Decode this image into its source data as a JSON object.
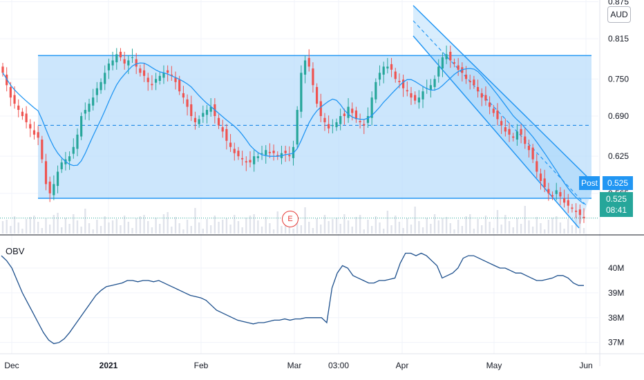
{
  "chart_data": [
    {
      "type": "candlestick",
      "currency": "AUD",
      "ylim": [
        0.5,
        0.88
      ],
      "y_ticks": [
        {
          "v": 0.875,
          "label": "0.875"
        },
        {
          "v": 0.815,
          "label": "0.815"
        },
        {
          "v": 0.75,
          "label": "0.750"
        },
        {
          "v": 0.69,
          "label": "0.690"
        },
        {
          "v": 0.625,
          "label": "0.625"
        },
        {
          "v": 0.565,
          "label": "0.565"
        }
      ],
      "x_ticks": [
        {
          "label": "Dec",
          "bold": false
        },
        {
          "label": "2021",
          "bold": true
        },
        {
          "label": "Feb",
          "bold": false
        },
        {
          "label": "Mar",
          "bold": false
        },
        {
          "label": "03:00",
          "bold": false
        },
        {
          "label": "Apr",
          "bold": false
        },
        {
          "label": "May",
          "bold": false
        },
        {
          "label": "Jun",
          "bold": false
        }
      ],
      "colors": {
        "up": "#26a69a",
        "down": "#ef5350",
        "ma": "#2196f3",
        "zone_fill": "#bbdefb",
        "zone_line": "#2196f3",
        "volume": "#e0e3eb"
      },
      "post_tag": "Post",
      "post_price": "0.525",
      "last_price": "0.525",
      "countdown": "08:41",
      "earnings_marker": "E",
      "range_box": {
        "top": 0.788,
        "bottom": 0.557,
        "mid": 0.675
      },
      "closes": [
        0.76,
        0.74,
        0.72,
        0.71,
        0.7,
        0.69,
        0.68,
        0.67,
        0.66,
        0.655,
        0.62,
        0.58,
        0.565,
        0.58,
        0.6,
        0.615,
        0.62,
        0.625,
        0.64,
        0.66,
        0.69,
        0.7,
        0.71,
        0.72,
        0.735,
        0.745,
        0.76,
        0.775,
        0.78,
        0.79,
        0.785,
        0.775,
        0.78,
        0.785,
        0.77,
        0.76,
        0.755,
        0.745,
        0.74,
        0.75,
        0.755,
        0.76,
        0.76,
        0.755,
        0.745,
        0.73,
        0.72,
        0.705,
        0.69,
        0.68,
        0.685,
        0.695,
        0.7,
        0.705,
        0.69,
        0.675,
        0.665,
        0.65,
        0.64,
        0.63,
        0.625,
        0.62,
        0.615,
        0.615,
        0.625,
        0.625,
        0.63,
        0.635,
        0.63,
        0.63,
        0.625,
        0.63,
        0.63,
        0.625,
        0.64,
        0.7,
        0.76,
        0.78,
        0.77,
        0.74,
        0.71,
        0.69,
        0.68,
        0.67,
        0.675,
        0.68,
        0.69,
        0.69,
        0.705,
        0.695,
        0.685,
        0.68,
        0.675,
        0.69,
        0.72,
        0.745,
        0.76,
        0.77,
        0.77,
        0.765,
        0.75,
        0.745,
        0.735,
        0.73,
        0.72,
        0.715,
        0.72,
        0.73,
        0.735,
        0.74,
        0.75,
        0.77,
        0.785,
        0.79,
        0.78,
        0.775,
        0.765,
        0.76,
        0.75,
        0.745,
        0.74,
        0.73,
        0.72,
        0.715,
        0.705,
        0.695,
        0.685,
        0.675,
        0.665,
        0.66,
        0.655,
        0.665,
        0.66,
        0.645,
        0.635,
        0.62,
        0.6,
        0.585,
        0.575,
        0.565,
        0.56,
        0.57,
        0.56,
        0.55,
        0.545,
        0.54,
        0.535,
        0.53,
        0.525
      ]
    },
    {
      "type": "line",
      "title": "OBV",
      "ylim": [
        36.6,
        41.2
      ],
      "y_ticks": [
        {
          "v": 40,
          "label": "40M"
        },
        {
          "v": 39,
          "label": "39M"
        },
        {
          "v": 38,
          "label": "38M"
        },
        {
          "v": 37,
          "label": "37M"
        }
      ],
      "values": [
        40.5,
        40.3,
        40.0,
        39.5,
        39.0,
        38.6,
        38.2,
        37.8,
        37.4,
        37.1,
        36.95,
        37.0,
        37.15,
        37.4,
        37.7,
        38.0,
        38.3,
        38.6,
        38.9,
        39.1,
        39.25,
        39.3,
        39.35,
        39.4,
        39.5,
        39.5,
        39.45,
        39.5,
        39.5,
        39.45,
        39.5,
        39.4,
        39.3,
        39.2,
        39.1,
        39.0,
        38.9,
        38.85,
        38.8,
        38.7,
        38.5,
        38.3,
        38.2,
        38.1,
        38.0,
        37.9,
        37.85,
        37.8,
        37.75,
        37.8,
        37.8,
        37.85,
        37.9,
        37.9,
        37.95,
        37.9,
        37.95,
        37.95,
        38.0,
        38.0,
        38.0,
        38.0,
        37.8,
        39.2,
        39.8,
        40.1,
        40.0,
        39.7,
        39.6,
        39.5,
        39.4,
        39.4,
        39.5,
        39.5,
        39.55,
        39.6,
        40.2,
        40.6,
        40.6,
        40.5,
        40.6,
        40.5,
        40.3,
        40.1,
        39.6,
        39.7,
        39.8,
        40.0,
        40.4,
        40.5,
        40.5,
        40.4,
        40.3,
        40.2,
        40.1,
        40.0,
        40.0,
        39.9,
        39.8,
        39.8,
        39.7,
        39.6,
        39.5,
        39.5,
        39.55,
        39.6,
        39.7,
        39.7,
        39.6,
        39.4,
        39.3,
        39.3
      ]
    }
  ]
}
